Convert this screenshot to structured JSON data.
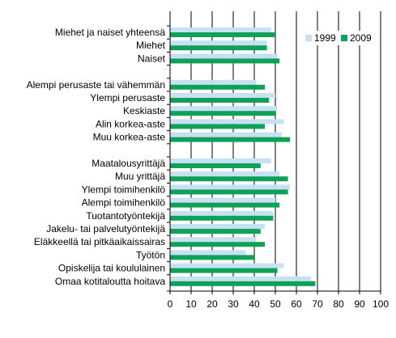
{
  "chart_data": {
    "type": "bar",
    "orientation": "horizontal",
    "x_ticks": [
      "0",
      "10",
      "20",
      "30",
      "40",
      "50",
      "60",
      "70",
      "80",
      "90",
      "100"
    ],
    "xlim": [
      0,
      100
    ],
    "grid": true,
    "legend_position": "top-right",
    "series": [
      {
        "name": "1999",
        "color": "#c7e1f3"
      },
      {
        "name": "2009",
        "color": "#0fa15a"
      }
    ],
    "categories": [
      "Miehet ja naiset yhteensä",
      "Miehet",
      "Naiset",
      "",
      "Alempi perusaste tai vähemmän",
      "Ylempi perusaste",
      "Keskiaste",
      "Alin korkea-aste",
      "Muu korkea-aste",
      "",
      "Maatalousyrittäjä",
      "Muu yrittäjä",
      "Ylempi toimihenkilö",
      "Alempi toimihenkilö",
      "Tuotantotyöntekijä",
      "Jakelu- tai palvelutyöntekijä",
      "Eläkkeellä tai pitkäaikaissairas",
      "Työtön",
      "Opiskelija tai koululainen",
      "Omaa kotitaloutta hoitava"
    ],
    "values_1999": [
      48,
      46,
      51,
      null,
      41,
      50,
      51,
      54,
      53,
      null,
      48,
      52,
      57,
      50,
      49,
      45,
      41,
      36,
      54,
      67
    ],
    "values_2009": [
      50,
      46,
      52,
      null,
      45,
      47,
      50,
      45,
      57,
      null,
      43,
      56,
      56,
      52,
      49,
      43,
      45,
      40,
      51,
      69
    ]
  }
}
